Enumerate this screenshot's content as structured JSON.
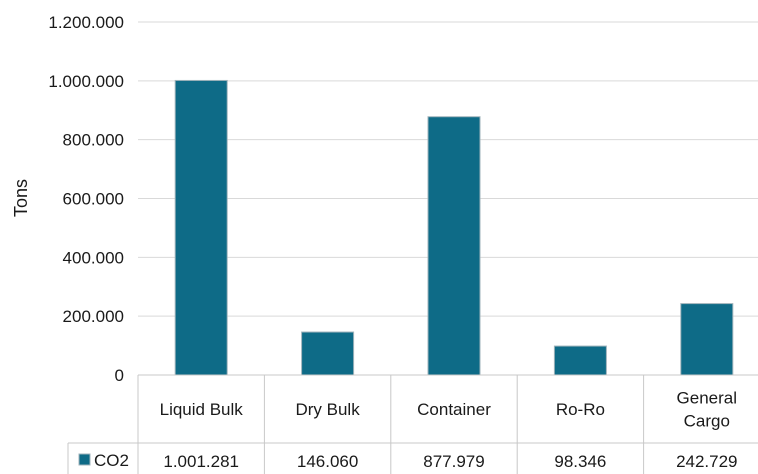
{
  "chart_data": {
    "type": "bar",
    "ylabel": "Tons",
    "ylim": [
      0,
      1200000
    ],
    "yticks": [
      "0",
      "200.000",
      "400.000",
      "600.000",
      "800.000",
      "1.000.000",
      "1.200.000"
    ],
    "categories": [
      [
        "Liquid Bulk"
      ],
      [
        "Dry Bulk"
      ],
      [
        "Container"
      ],
      [
        "Ro-Ro"
      ],
      [
        "General",
        "Cargo"
      ]
    ],
    "series": [
      {
        "name": "CO2",
        "color": "#0e6b87",
        "values": [
          1001281,
          146060,
          877979,
          98346,
          242729
        ],
        "labels": [
          "1.001.281",
          "146.060",
          "877.979",
          "98.346",
          "242.729"
        ]
      }
    ],
    "grid": true,
    "legend": "data-table-left"
  }
}
